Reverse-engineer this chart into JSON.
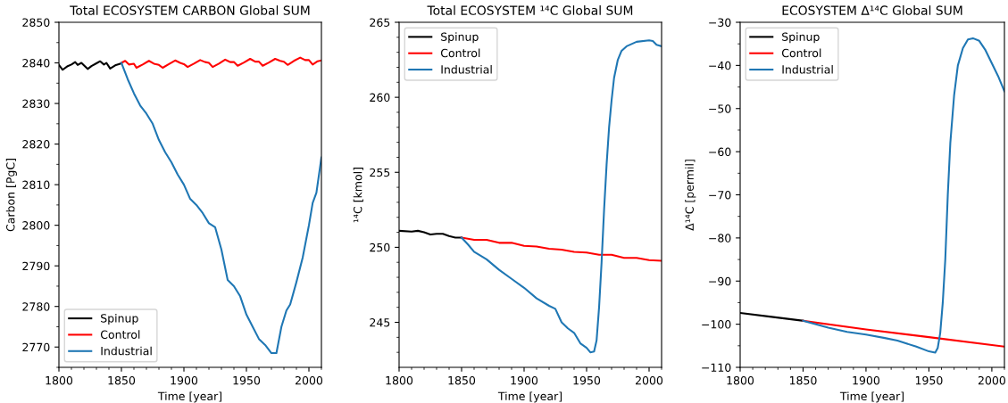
{
  "chart_data": [
    {
      "type": "line",
      "title": "Total ECOSYSTEM CARBON Global SUM",
      "xlabel": "Time [year]",
      "ylabel": "Carbon [PgC]",
      "legend": "lower left",
      "grid": false,
      "xlim": [
        1800,
        2010
      ],
      "ylim": [
        2765,
        2850
      ],
      "xticks": [
        1800,
        {
          "value": 1810,
          "label": null
        },
        {
          "value": 1820,
          "label": null
        },
        {
          "value": 1830,
          "label": null
        },
        {
          "value": 1840,
          "label": null
        },
        1850,
        {
          "value": 1860,
          "label": null
        },
        {
          "value": 1870,
          "label": null
        },
        {
          "value": 1880,
          "label": null
        },
        {
          "value": 1890,
          "label": null
        },
        1900,
        {
          "value": 1910,
          "label": null
        },
        {
          "value": 1920,
          "label": null
        },
        {
          "value": 1930,
          "label": null
        },
        {
          "value": 1940,
          "label": null
        },
        1950,
        {
          "value": 1960,
          "label": null
        },
        {
          "value": 1970,
          "label": null
        },
        {
          "value": 1980,
          "label": null
        },
        {
          "value": 1990,
          "label": null
        },
        2000,
        {
          "value": 2010,
          "label": null
        }
      ],
      "yticks": [
        {
          "value": 2765,
          "label": null
        },
        2770,
        {
          "value": 2775,
          "label": null
        },
        2780,
        {
          "value": 2785,
          "label": null
        },
        2790,
        {
          "value": 2795,
          "label": null
        },
        2800,
        {
          "value": 2805,
          "label": null
        },
        2810,
        {
          "value": 2815,
          "label": null
        },
        2820,
        {
          "value": 2825,
          "label": null
        },
        2830,
        {
          "value": 2835,
          "label": null
        },
        2840,
        {
          "value": 2845,
          "label": null
        },
        2850
      ],
      "series": [
        {
          "name": "Spinup",
          "color": "#000000",
          "x": [
            1800,
            1803,
            1807,
            1810,
            1813,
            1815,
            1818,
            1820,
            1823,
            1826,
            1830,
            1833,
            1836,
            1838,
            1841,
            1845,
            1850
          ],
          "values": [
            2839.5,
            2838.3,
            2839.2,
            2839.6,
            2840.2,
            2839.5,
            2840,
            2839.4,
            2838.5,
            2839.2,
            2839.9,
            2840.4,
            2839.6,
            2840,
            2838.6,
            2839.4,
            2839.9
          ]
        },
        {
          "name": "Control",
          "color": "#ff0000",
          "x": [
            1850,
            1853,
            1856,
            1860,
            1862,
            1867,
            1872,
            1876,
            1880,
            1883,
            1888,
            1893,
            1897,
            1900,
            1903,
            1908,
            1913,
            1917,
            1920,
            1923,
            1928,
            1933,
            1937,
            1940,
            1943,
            1948,
            1953,
            1957,
            1960,
            1963,
            1968,
            1973,
            1977,
            1980,
            1983,
            1988,
            1993,
            1997,
            2000,
            2003,
            2007,
            2010
          ],
          "values": [
            2840,
            2840.5,
            2839.6,
            2839.8,
            2838.8,
            2839.6,
            2840.5,
            2839.8,
            2839.5,
            2838.8,
            2839.7,
            2840.6,
            2840,
            2839.7,
            2839,
            2839.8,
            2840.7,
            2840.2,
            2840,
            2839,
            2839.8,
            2840.8,
            2840.2,
            2840.2,
            2839.3,
            2840.1,
            2841,
            2840.3,
            2840.3,
            2839.3,
            2840.1,
            2841,
            2840.5,
            2840.3,
            2839.5,
            2840.5,
            2841.3,
            2840.7,
            2840.7,
            2839.6,
            2840.4,
            2840.6
          ]
        },
        {
          "name": "Industrial",
          "color": "#1f77b4",
          "x": [
            1850,
            1855,
            1860,
            1865,
            1870,
            1875,
            1880,
            1885,
            1890,
            1895,
            1900,
            1905,
            1910,
            1915,
            1920,
            1925,
            1930,
            1935,
            1940,
            1945,
            1950,
            1955,
            1960,
            1965,
            1970,
            1974,
            1978,
            1982,
            1985,
            1990,
            1995,
            2000,
            2003,
            2006,
            2010
          ],
          "values": [
            2840,
            2836,
            2832.5,
            2829.5,
            2827.5,
            2825,
            2821,
            2818,
            2815.5,
            2812.5,
            2810,
            2806.5,
            2805,
            2803,
            2800.5,
            2799.5,
            2794,
            2786.5,
            2785,
            2782.5,
            2778,
            2775,
            2772,
            2770.5,
            2768.5,
            2768.5,
            2775,
            2779,
            2780.5,
            2786,
            2792,
            2800,
            2805.5,
            2808,
            2816.7
          ]
        }
      ]
    },
    {
      "type": "line",
      "title": "Total ECOSYSTEM ¹⁴C Global SUM",
      "xlabel": "Time [year]",
      "ylabel": "¹⁴C [kmol]",
      "legend": "upper left",
      "grid": false,
      "xlim": [
        1800,
        2010
      ],
      "ylim": [
        242,
        265
      ],
      "xticks": [
        1800,
        {
          "value": 1810,
          "label": null
        },
        {
          "value": 1820,
          "label": null
        },
        {
          "value": 1830,
          "label": null
        },
        {
          "value": 1840,
          "label": null
        },
        1850,
        {
          "value": 1860,
          "label": null
        },
        {
          "value": 1870,
          "label": null
        },
        {
          "value": 1880,
          "label": null
        },
        {
          "value": 1890,
          "label": null
        },
        1900,
        {
          "value": 1910,
          "label": null
        },
        {
          "value": 1920,
          "label": null
        },
        {
          "value": 1930,
          "label": null
        },
        {
          "value": 1940,
          "label": null
        },
        1950,
        {
          "value": 1960,
          "label": null
        },
        {
          "value": 1970,
          "label": null
        },
        {
          "value": 1980,
          "label": null
        },
        {
          "value": 1990,
          "label": null
        },
        2000,
        {
          "value": 2010,
          "label": null
        }
      ],
      "yticks": [
        {
          "value": 243,
          "label": null
        },
        {
          "value": 244,
          "label": null
        },
        245,
        {
          "value": 246,
          "label": null
        },
        {
          "value": 247,
          "label": null
        },
        {
          "value": 248,
          "label": null
        },
        {
          "value": 249,
          "label": null
        },
        250,
        {
          "value": 251,
          "label": null
        },
        {
          "value": 252,
          "label": null
        },
        {
          "value": 253,
          "label": null
        },
        {
          "value": 254,
          "label": null
        },
        255,
        {
          "value": 256,
          "label": null
        },
        {
          "value": 257,
          "label": null
        },
        {
          "value": 258,
          "label": null
        },
        {
          "value": 259,
          "label": null
        },
        260,
        {
          "value": 261,
          "label": null
        },
        {
          "value": 262,
          "label": null
        },
        {
          "value": 263,
          "label": null
        },
        {
          "value": 264,
          "label": null
        },
        265
      ],
      "series": [
        {
          "name": "Spinup",
          "color": "#000000",
          "x": [
            1800,
            1810,
            1815,
            1820,
            1825,
            1830,
            1835,
            1840,
            1845,
            1850
          ],
          "values": [
            251.1,
            251.05,
            251.1,
            251.0,
            250.85,
            250.9,
            250.9,
            250.75,
            250.65,
            250.65
          ]
        },
        {
          "name": "Control",
          "color": "#ff0000",
          "x": [
            1850,
            1860,
            1870,
            1880,
            1890,
            1900,
            1910,
            1920,
            1930,
            1940,
            1950,
            1960,
            1970,
            1980,
            1990,
            2000,
            2010
          ],
          "values": [
            250.65,
            250.5,
            250.5,
            250.3,
            250.3,
            250.1,
            250.05,
            249.9,
            249.85,
            249.7,
            249.65,
            249.5,
            249.5,
            249.3,
            249.3,
            249.15,
            249.1
          ]
        },
        {
          "name": "Industrial",
          "color": "#1f77b4",
          "x": [
            1850,
            1855,
            1860,
            1870,
            1880,
            1890,
            1900,
            1910,
            1920,
            1925,
            1930,
            1935,
            1940,
            1945,
            1950,
            1953,
            1956,
            1958,
            1960,
            1962,
            1964,
            1966,
            1968,
            1970,
            1972,
            1975,
            1978,
            1982,
            1990,
            2000,
            2003,
            2006,
            2010
          ],
          "values": [
            250.65,
            250.2,
            249.7,
            249.2,
            248.5,
            247.9,
            247.3,
            246.6,
            246.1,
            245.9,
            245.0,
            244.6,
            244.3,
            243.6,
            243.3,
            243.0,
            243.05,
            243.8,
            246,
            249,
            252.5,
            255.5,
            258,
            259.8,
            261.3,
            262.5,
            263.1,
            263.4,
            263.7,
            263.8,
            263.75,
            263.5,
            263.4
          ]
        }
      ]
    },
    {
      "type": "line",
      "title": "ECOSYSTEM Δ¹⁴C Global SUM",
      "xlabel": "Time [year]",
      "ylabel": "Δ¹⁴C [permil]",
      "legend": "upper left",
      "grid": false,
      "xlim": [
        1800,
        2010
      ],
      "ylim": [
        -110,
        -30
      ],
      "xticks": [
        1800,
        {
          "value": 1810,
          "label": null
        },
        {
          "value": 1820,
          "label": null
        },
        {
          "value": 1830,
          "label": null
        },
        {
          "value": 1840,
          "label": null
        },
        1850,
        {
          "value": 1860,
          "label": null
        },
        {
          "value": 1870,
          "label": null
        },
        {
          "value": 1880,
          "label": null
        },
        {
          "value": 1890,
          "label": null
        },
        1900,
        {
          "value": 1910,
          "label": null
        },
        {
          "value": 1920,
          "label": null
        },
        {
          "value": 1930,
          "label": null
        },
        {
          "value": 1940,
          "label": null
        },
        1950,
        {
          "value": 1960,
          "label": null
        },
        {
          "value": 1970,
          "label": null
        },
        {
          "value": 1980,
          "label": null
        },
        {
          "value": 1990,
          "label": null
        },
        2000,
        {
          "value": 2010,
          "label": null
        }
      ],
      "yticks": [
        {
          "value": -110,
          "label": "−110"
        },
        {
          "value": -105,
          "label": null
        },
        {
          "value": -100,
          "label": "−100"
        },
        {
          "value": -95,
          "label": null
        },
        {
          "value": -90,
          "label": "−90"
        },
        {
          "value": -85,
          "label": null
        },
        {
          "value": -80,
          "label": "−80"
        },
        {
          "value": -75,
          "label": null
        },
        {
          "value": -70,
          "label": "−70"
        },
        {
          "value": -65,
          "label": null
        },
        {
          "value": -60,
          "label": "−60"
        },
        {
          "value": -55,
          "label": null
        },
        {
          "value": -50,
          "label": "−50"
        },
        {
          "value": -45,
          "label": null
        },
        {
          "value": -40,
          "label": "−40"
        },
        {
          "value": -35,
          "label": null
        },
        {
          "value": -30,
          "label": "−30"
        }
      ],
      "series": [
        {
          "name": "Spinup",
          "color": "#000000",
          "x": [
            1800,
            1825,
            1850
          ],
          "values": [
            -97.4,
            -98.3,
            -99.2
          ]
        },
        {
          "name": "Control",
          "color": "#ff0000",
          "x": [
            1850,
            1900,
            1950,
            2010
          ],
          "values": [
            -99.2,
            -101.2,
            -103.0,
            -105.2
          ]
        },
        {
          "name": "Industrial",
          "color": "#1f77b4",
          "x": [
            1850,
            1870,
            1885,
            1900,
            1915,
            1925,
            1940,
            1950,
            1955,
            1957,
            1959,
            1961,
            1963,
            1965,
            1967,
            1970,
            1973,
            1977,
            1981,
            1985,
            1990,
            1995,
            2000,
            2005,
            2010
          ],
          "values": [
            -99.2,
            -100.8,
            -101.8,
            -102.4,
            -103.2,
            -103.8,
            -105.2,
            -106.3,
            -106.6,
            -105.5,
            -102,
            -95,
            -85,
            -70,
            -58,
            -47,
            -40,
            -36,
            -34,
            -33.7,
            -34.3,
            -36.5,
            -39.5,
            -42.5,
            -46
          ]
        }
      ]
    }
  ]
}
